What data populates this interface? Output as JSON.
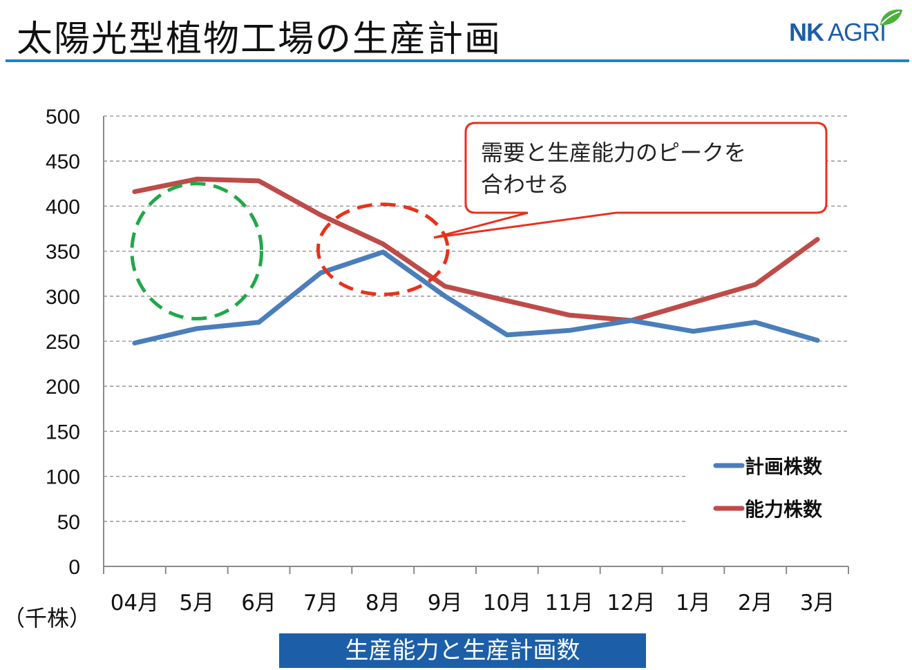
{
  "header": {
    "title": "太陽光型植物工場の生産計画",
    "logo_text_bold": "NK",
    "logo_text": "AGRI",
    "accent_color": "#1a86c8",
    "logo_color": "#1c5fa8",
    "leaf_color": "#4caf3c"
  },
  "chart_data": {
    "type": "line",
    "categories": [
      "04月",
      "5月",
      "6月",
      "7月",
      "8月",
      "9月",
      "10月",
      "11月",
      "12月",
      "1月",
      "2月",
      "3月"
    ],
    "series": [
      {
        "name": "計画株数",
        "color": "#4a7ebb",
        "values": [
          248,
          264,
          271,
          326,
          349,
          300,
          257,
          262,
          273,
          261,
          271,
          251
        ]
      },
      {
        "name": "能力株数",
        "color": "#be4b48",
        "values": [
          416,
          430,
          428,
          390,
          358,
          311,
          295,
          279,
          273,
          293,
          313,
          363
        ]
      }
    ],
    "yticks": [
      0,
      50,
      100,
      150,
      200,
      250,
      300,
      350,
      400,
      450,
      500
    ],
    "ylim": [
      0,
      500
    ],
    "ylabel": "（千株）",
    "xlabel": "生産能力と生産計画数",
    "grid": true,
    "legend_position": "right",
    "annotations": [
      {
        "type": "callout",
        "text_line1": "需要と生産能力のピークを",
        "text_line2": "合わせる",
        "color": "#e8311a"
      },
      {
        "type": "dashed-ellipse",
        "color": "#1fa848",
        "x_from": "04月",
        "x_to": "6月",
        "y_from": 275,
        "y_to": 425
      },
      {
        "type": "dashed-ellipse",
        "color": "#e8311a",
        "x_from": "7月",
        "x_to": "9月",
        "y_from": 302,
        "y_to": 402
      }
    ]
  }
}
